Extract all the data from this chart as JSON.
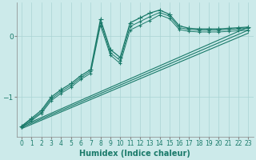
{
  "title": "",
  "xlabel": "Humidex (Indice chaleur)",
  "bg_color": "#cceaea",
  "line_color": "#1a7a6a",
  "grid_color": "#aad4d4",
  "xlim": [
    -0.5,
    23.5
  ],
  "ylim": [
    -1.65,
    0.55
  ],
  "yticks": [
    0,
    -1
  ],
  "xticks": [
    0,
    1,
    2,
    3,
    4,
    5,
    6,
    7,
    8,
    9,
    10,
    11,
    12,
    13,
    14,
    15,
    16,
    17,
    18,
    19,
    20,
    21,
    22,
    23
  ],
  "lines": [
    {
      "x": [
        0,
        1,
        2,
        3,
        4,
        5,
        6,
        7,
        8,
        9,
        10,
        11,
        12,
        13,
        14,
        15,
        16,
        17,
        18,
        19,
        20,
        21,
        22,
        23
      ],
      "y": [
        -1.48,
        -1.35,
        -1.22,
        -1.0,
        -0.88,
        -0.78,
        -0.65,
        -0.55,
        0.28,
        -0.22,
        -0.35,
        0.22,
        0.3,
        0.38,
        0.43,
        0.36,
        0.17,
        0.13,
        0.12,
        0.12,
        0.12,
        0.13,
        0.14,
        0.15
      ],
      "marker": "+",
      "marker_size": 4,
      "lw": 0.9
    },
    {
      "x": [
        0,
        1,
        2,
        3,
        4,
        5,
        6,
        7,
        8,
        9,
        10,
        11,
        12,
        13,
        14,
        15,
        16,
        17,
        18,
        19,
        20,
        21,
        22,
        23
      ],
      "y": [
        -1.48,
        -1.37,
        -1.25,
        -1.03,
        -0.91,
        -0.81,
        -0.68,
        -0.58,
        0.23,
        -0.27,
        -0.4,
        0.16,
        0.24,
        0.32,
        0.39,
        0.33,
        0.14,
        0.11,
        0.1,
        0.1,
        0.1,
        0.11,
        0.12,
        0.13
      ],
      "marker": "+",
      "marker_size": 3,
      "lw": 0.7
    },
    {
      "x": [
        0,
        1,
        2,
        3,
        4,
        5,
        6,
        7,
        8,
        9,
        10,
        11,
        12,
        13,
        14,
        15,
        16,
        17,
        18,
        19,
        20,
        21,
        22,
        23
      ],
      "y": [
        -1.5,
        -1.39,
        -1.27,
        -1.06,
        -0.94,
        -0.84,
        -0.71,
        -0.61,
        0.18,
        -0.31,
        -0.45,
        0.1,
        0.18,
        0.26,
        0.35,
        0.29,
        0.11,
        0.08,
        0.07,
        0.07,
        0.07,
        0.08,
        0.09,
        0.1
      ],
      "marker": "+",
      "marker_size": 3,
      "lw": 0.7
    },
    {
      "x": [
        0,
        23
      ],
      "y": [
        -1.48,
        0.15
      ],
      "marker": null,
      "marker_size": 0,
      "lw": 0.8
    },
    {
      "x": [
        0,
        23
      ],
      "y": [
        -1.5,
        0.1
      ],
      "marker": null,
      "marker_size": 0,
      "lw": 0.8
    },
    {
      "x": [
        0,
        23
      ],
      "y": [
        -1.52,
        0.05
      ],
      "marker": null,
      "marker_size": 0,
      "lw": 0.8
    }
  ],
  "tick_fontsize": 5.5,
  "label_fontsize": 7
}
